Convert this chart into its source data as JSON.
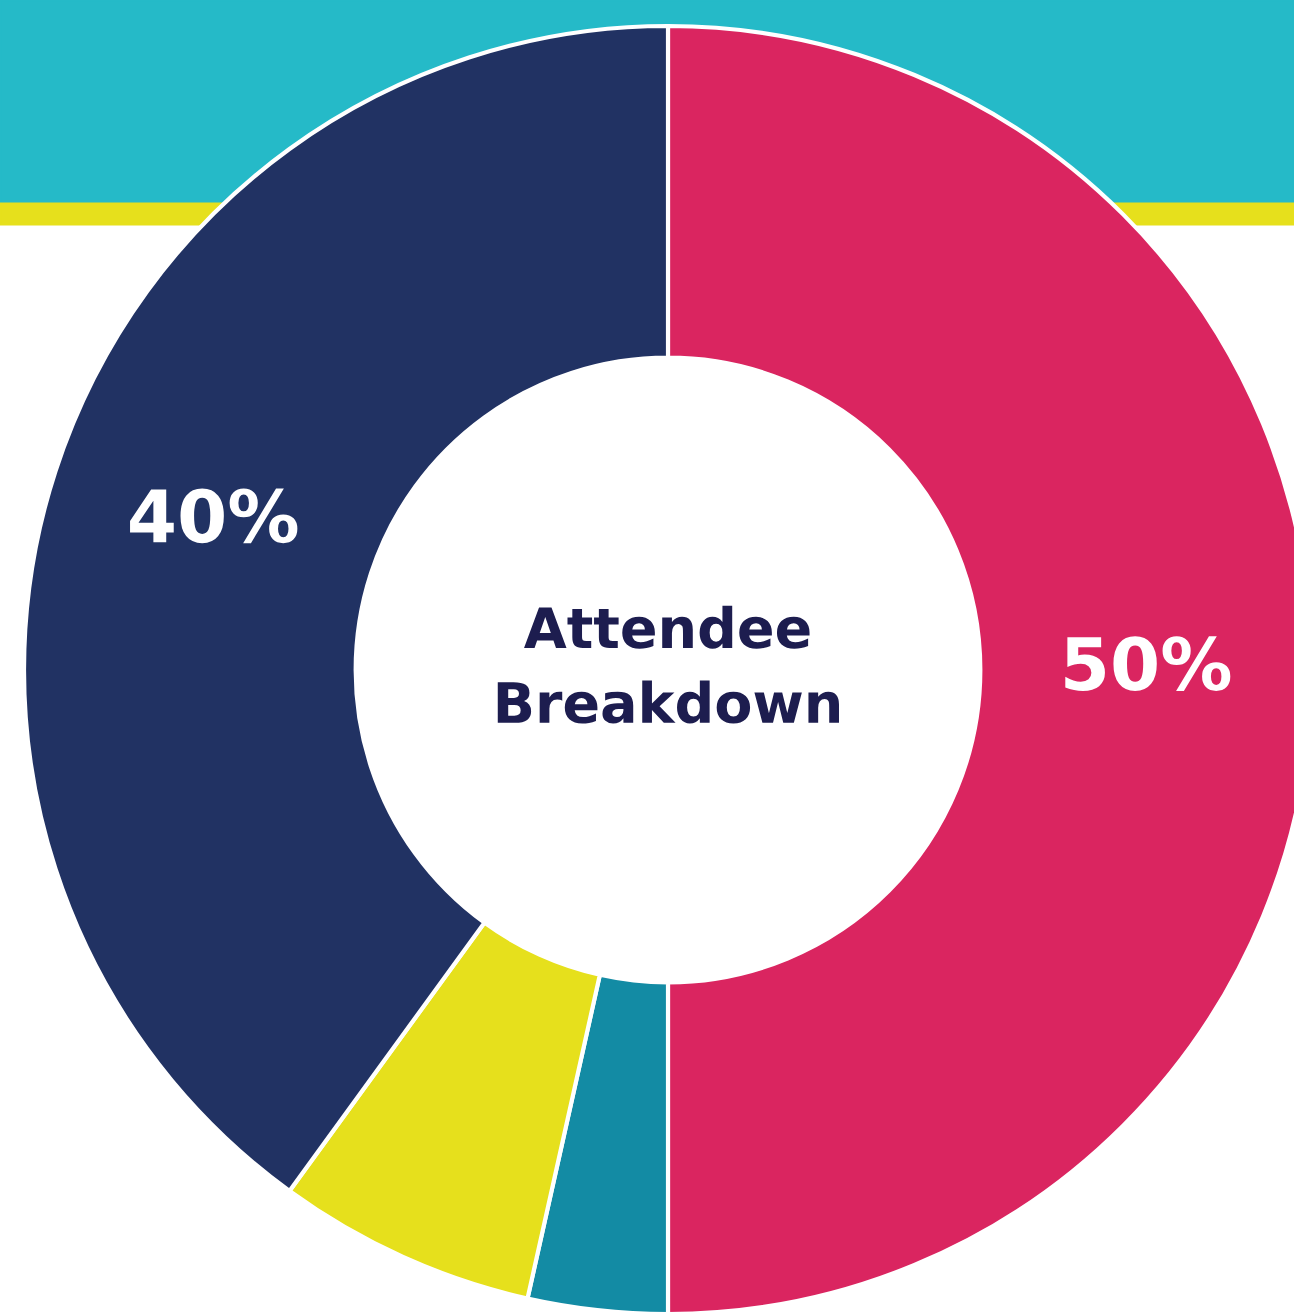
{
  "chart_data": {
    "type": "donut",
    "title": "Attendee\nBreakdown",
    "categories": [
      null,
      null,
      null,
      null
    ],
    "values": [
      50,
      3.5,
      6.5,
      40
    ],
    "colors": [
      "#da2560",
      "#138ba4",
      "#e6e01c",
      "#213263"
    ],
    "value_labels": [
      "50%",
      null,
      null,
      "40%"
    ],
    "legend": false
  }
}
